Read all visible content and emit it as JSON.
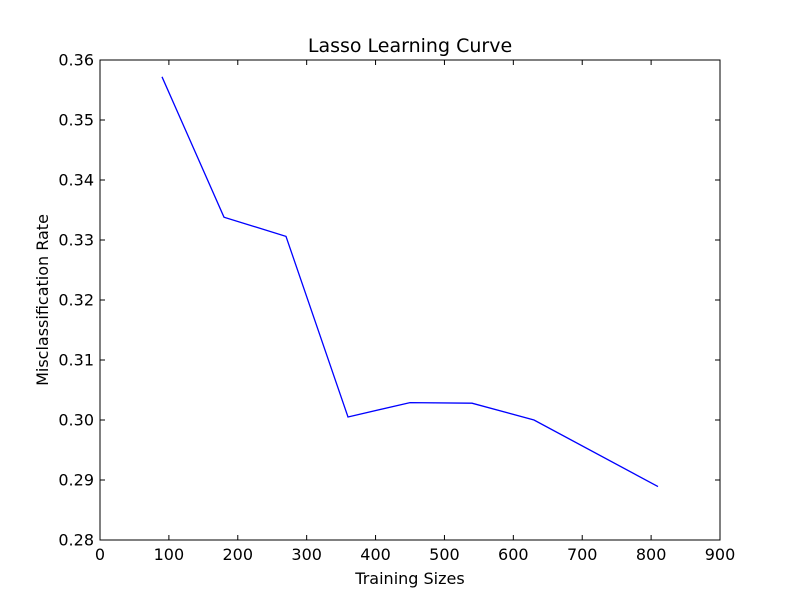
{
  "chart_data": {
    "type": "line",
    "title": "Lasso Learning Curve",
    "xlabel": "Training Sizes",
    "ylabel": "Misclassification Rate",
    "xlim": [
      0,
      900
    ],
    "ylim": [
      0.28,
      0.36
    ],
    "x_ticks": [
      0,
      100,
      200,
      300,
      400,
      500,
      600,
      700,
      800,
      900
    ],
    "y_ticks": [
      0.28,
      0.29,
      0.3,
      0.31,
      0.32,
      0.33,
      0.34,
      0.35,
      0.36
    ],
    "x_tick_labels": [
      "0",
      "100",
      "200",
      "300",
      "400",
      "500",
      "600",
      "700",
      "800",
      "900"
    ],
    "y_tick_labels": [
      "0.28",
      "0.29",
      "0.30",
      "0.31",
      "0.32",
      "0.33",
      "0.34",
      "0.35",
      "0.36"
    ],
    "grid": false,
    "series": [
      {
        "color": "#0000ff",
        "x": [
          90,
          180,
          270,
          360,
          450,
          540,
          630,
          810
        ],
        "y": [
          0.3572,
          0.3338,
          0.3306,
          0.3005,
          0.3029,
          0.3028,
          0.3,
          0.2889
        ]
      }
    ]
  }
}
